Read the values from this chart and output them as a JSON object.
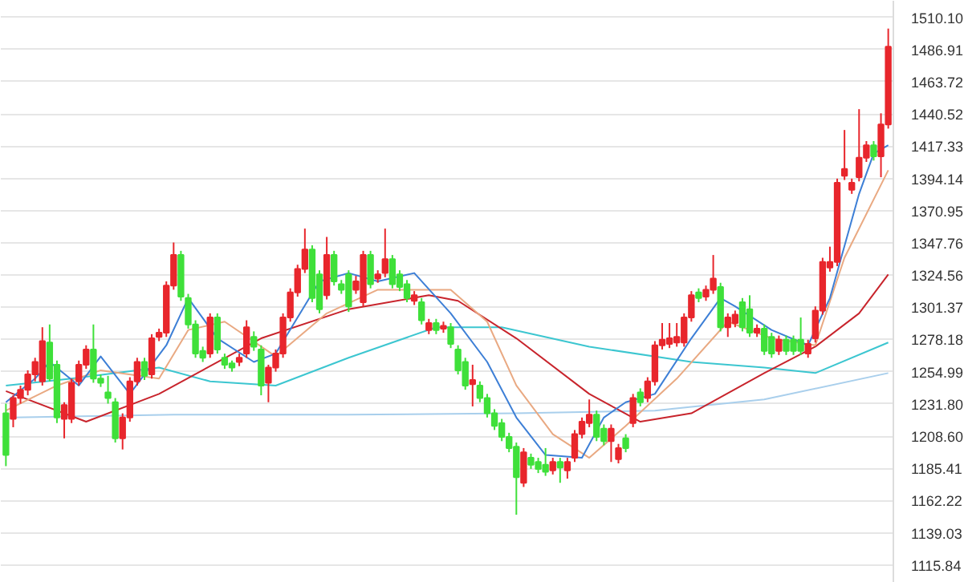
{
  "chart_data": {
    "type": "candlestick",
    "categories": [
      null,
      null,
      null,
      null,
      null,
      null,
      null,
      null,
      null,
      null,
      null,
      null,
      null,
      null,
      null,
      null,
      null,
      null,
      null,
      null,
      null,
      null,
      null,
      null,
      null,
      null,
      null,
      null,
      null,
      null,
      null,
      null,
      null,
      null,
      null,
      null,
      null,
      null,
      null,
      null,
      null,
      null,
      null,
      null,
      null,
      null,
      null,
      null,
      null,
      null,
      null,
      null,
      null,
      null,
      null,
      null,
      null,
      null,
      null,
      null,
      null,
      null,
      null,
      null,
      null,
      null,
      null,
      null,
      null,
      null,
      null,
      null,
      null,
      null,
      null,
      null,
      null,
      null,
      null,
      null,
      null,
      null,
      null,
      null,
      null,
      null,
      null,
      null,
      null,
      null,
      null,
      null,
      null,
      null,
      null,
      null,
      null,
      null,
      null,
      null,
      null,
      null,
      null,
      null,
      null,
      null,
      null,
      null,
      null,
      null,
      null,
      null,
      null,
      null,
      null,
      null,
      null,
      null,
      null,
      null,
      null,
      null
    ],
    "ohlc": [
      [
        1225,
        1232,
        1187,
        1195
      ],
      [
        1221,
        1238,
        1215,
        1236
      ],
      [
        1236,
        1245,
        1232,
        1242
      ],
      [
        1242,
        1256,
        1238,
        1253
      ],
      [
        1253,
        1265,
        1248,
        1262
      ],
      [
        1248,
        1287,
        1245,
        1277
      ],
      [
        1276,
        1289,
        1248,
        1250
      ],
      [
        1260,
        1263,
        1218,
        1222
      ],
      [
        1221,
        1233,
        1207,
        1231
      ],
      [
        1221,
        1250,
        1218,
        1247
      ],
      [
        1248,
        1263,
        1245,
        1260
      ],
      [
        1260,
        1274,
        1257,
        1271
      ],
      [
        1271,
        1289,
        1247,
        1250
      ],
      [
        1250,
        1253,
        1244,
        1247
      ],
      [
        1240,
        1252,
        1232,
        1236
      ],
      [
        1233,
        1236,
        1204,
        1207
      ],
      [
        1207,
        1225,
        1199,
        1222
      ],
      [
        1222,
        1251,
        1219,
        1248
      ],
      [
        1248,
        1265,
        1245,
        1262
      ],
      [
        1262,
        1265,
        1249,
        1252
      ],
      [
        1253,
        1282,
        1250,
        1279
      ],
      [
        1280,
        1286,
        1277,
        1283
      ],
      [
        1283,
        1320,
        1280,
        1317
      ],
      [
        1317,
        1348,
        1314,
        1339
      ],
      [
        1339,
        1342,
        1306,
        1309
      ],
      [
        1308,
        1311,
        1286,
        1289
      ],
      [
        1289,
        1292,
        1265,
        1268
      ],
      [
        1270,
        1273,
        1262,
        1265
      ],
      [
        1268,
        1297,
        1265,
        1294
      ],
      [
        1294,
        1297,
        1268,
        1271
      ],
      [
        1265,
        1268,
        1257,
        1260
      ],
      [
        1261,
        1263,
        1255,
        1258
      ],
      [
        1262,
        1268,
        1259,
        1265
      ],
      [
        1268,
        1292,
        1265,
        1287
      ],
      [
        1280,
        1284,
        1270,
        1273
      ],
      [
        1271,
        1274,
        1238,
        1245
      ],
      [
        1247,
        1260,
        1233,
        1258
      ],
      [
        1258,
        1271,
        1255,
        1268
      ],
      [
        1268,
        1297,
        1265,
        1294
      ],
      [
        1294,
        1315,
        1291,
        1312
      ],
      [
        1312,
        1332,
        1309,
        1329
      ],
      [
        1329,
        1358,
        1326,
        1343
      ],
      [
        1343,
        1346,
        1305,
        1308
      ],
      [
        1325,
        1328,
        1297,
        1300
      ],
      [
        1310,
        1352,
        1307,
        1339
      ],
      [
        1339,
        1342,
        1317,
        1320
      ],
      [
        1318,
        1321,
        1311,
        1314
      ],
      [
        1325,
        1328,
        1298,
        1302
      ],
      [
        1314,
        1324,
        1311,
        1320
      ],
      [
        1305,
        1342,
        1302,
        1339
      ],
      [
        1339,
        1342,
        1315,
        1318
      ],
      [
        1322,
        1328,
        1319,
        1325
      ],
      [
        1326,
        1358,
        1323,
        1336
      ],
      [
        1336,
        1339,
        1315,
        1318
      ],
      [
        1325,
        1328,
        1313,
        1316
      ],
      [
        1318,
        1321,
        1305,
        1308
      ],
      [
        1306,
        1313,
        1303,
        1310
      ],
      [
        1305,
        1308,
        1289,
        1292
      ],
      [
        1285,
        1293,
        1282,
        1290
      ],
      [
        1290,
        1293,
        1282,
        1285
      ],
      [
        1286,
        1291,
        1283,
        1288
      ],
      [
        1287,
        1290,
        1272,
        1275
      ],
      [
        1271,
        1274,
        1253,
        1256
      ],
      [
        1262,
        1265,
        1242,
        1245
      ],
      [
        1246,
        1260,
        1230,
        1249
      ],
      [
        1245,
        1248,
        1233,
        1236
      ],
      [
        1236,
        1239,
        1222,
        1225
      ],
      [
        1225,
        1228,
        1213,
        1216
      ],
      [
        1218,
        1221,
        1205,
        1208
      ],
      [
        1208,
        1211,
        1197,
        1200
      ],
      [
        1201,
        1204,
        1152,
        1179
      ],
      [
        1175,
        1200,
        1172,
        1197
      ],
      [
        1193,
        1196,
        1185,
        1188
      ],
      [
        1190,
        1193,
        1182,
        1185
      ],
      [
        1188,
        1200,
        1180,
        1183
      ],
      [
        1184,
        1193,
        1181,
        1190
      ],
      [
        1190,
        1193,
        1175,
        1186
      ],
      [
        1184,
        1193,
        1178,
        1190
      ],
      [
        1193,
        1213,
        1190,
        1210
      ],
      [
        1210,
        1222,
        1207,
        1219
      ],
      [
        1218,
        1235,
        1215,
        1224
      ],
      [
        1224,
        1227,
        1205,
        1208
      ],
      [
        1214,
        1217,
        1202,
        1205
      ],
      [
        1205,
        1217,
        1190,
        1214
      ],
      [
        1192,
        1203,
        1189,
        1200
      ],
      [
        1207,
        1210,
        1197,
        1200
      ],
      [
        1218,
        1239,
        1215,
        1236
      ],
      [
        1240,
        1243,
        1230,
        1233
      ],
      [
        1236,
        1251,
        1233,
        1248
      ],
      [
        1248,
        1277,
        1245,
        1274
      ],
      [
        1274,
        1290,
        1271,
        1278
      ],
      [
        1275,
        1290,
        1272,
        1279
      ],
      [
        1276,
        1290,
        1273,
        1280
      ],
      [
        1276,
        1297,
        1273,
        1294
      ],
      [
        1294,
        1313,
        1291,
        1310
      ],
      [
        1312,
        1315,
        1305,
        1308
      ],
      [
        1309,
        1317,
        1306,
        1314
      ],
      [
        1314,
        1339,
        1311,
        1322
      ],
      [
        1316,
        1319,
        1284,
        1287
      ],
      [
        1287,
        1297,
        1280,
        1294
      ],
      [
        1290,
        1299,
        1287,
        1296
      ],
      [
        1305,
        1308,
        1284,
        1287
      ],
      [
        1300,
        1310,
        1280,
        1283
      ],
      [
        1283,
        1289,
        1280,
        1286
      ],
      [
        1286,
        1289,
        1267,
        1270
      ],
      [
        1280,
        1283,
        1265,
        1268
      ],
      [
        1270,
        1281,
        1267,
        1278
      ],
      [
        1278,
        1281,
        1267,
        1270
      ],
      [
        1278,
        1281,
        1267,
        1270
      ],
      [
        1278,
        1294,
        1267,
        1270
      ],
      [
        1268,
        1278,
        1265,
        1275
      ],
      [
        1279,
        1302,
        1276,
        1299
      ],
      [
        1299,
        1337,
        1296,
        1334
      ],
      [
        1330,
        1345,
        1327,
        1334
      ],
      [
        1334,
        1394,
        1331,
        1391
      ],
      [
        1396,
        1429,
        1393,
        1401
      ],
      [
        1386,
        1394,
        1383,
        1391
      ],
      [
        1395,
        1444,
        1392,
        1409
      ],
      [
        1409,
        1421,
        1406,
        1418
      ],
      [
        1418,
        1421,
        1407,
        1410
      ],
      [
        1410,
        1441,
        1395,
        1433
      ],
      [
        1433,
        1502,
        1430,
        1489
      ]
    ],
    "series": [
      {
        "type": "line",
        "color": "#a9cfec",
        "values": [
          null,
          1222,
          null,
          null,
          null,
          null,
          null,
          null,
          null,
          null,
          null,
          null,
          null,
          null,
          null,
          null,
          null,
          null,
          null,
          null,
          null,
          null,
          null,
          1224,
          null,
          null,
          null,
          null,
          null,
          null,
          null,
          null,
          null,
          null,
          null,
          null,
          null,
          null,
          null,
          null,
          null,
          null,
          null,
          null,
          null,
          null,
          null,
          1224,
          null,
          null,
          null,
          null,
          null,
          null,
          null,
          null,
          null,
          null,
          null,
          null,
          null,
          null,
          null,
          null,
          null,
          null,
          null,
          null,
          null,
          null,
          1225,
          null,
          null,
          null,
          null,
          null,
          null,
          null,
          null,
          null,
          null,
          null,
          null,
          null,
          null,
          null,
          null,
          null,
          null,
          1227,
          null,
          null,
          null,
          null,
          null,
          null,
          null,
          null,
          null,
          null,
          null,
          null,
          null,
          null,
          1235,
          null,
          null,
          null,
          null,
          null,
          null,
          null,
          null,
          null,
          null,
          null,
          null,
          null,
          null,
          null,
          null,
          1254
        ]
      },
      {
        "type": "line",
        "color": "#3cc6d0",
        "values": [
          1245,
          null,
          null,
          null,
          null,
          null,
          null,
          null,
          null,
          1250,
          null,
          null,
          null,
          null,
          null,
          null,
          null,
          null,
          null,
          null,
          null,
          1258,
          null,
          null,
          null,
          null,
          null,
          null,
          1248,
          null,
          null,
          null,
          null,
          null,
          null,
          null,
          null,
          1245,
          null,
          null,
          null,
          null,
          null,
          null,
          null,
          null,
          null,
          1265,
          null,
          null,
          null,
          null,
          null,
          null,
          null,
          null,
          null,
          null,
          null,
          1287,
          null,
          null,
          null,
          null,
          null,
          null,
          null,
          null,
          1287,
          null,
          null,
          null,
          null,
          null,
          null,
          null,
          null,
          null,
          null,
          null,
          1273,
          null,
          null,
          null,
          null,
          null,
          null,
          null,
          null,
          null,
          null,
          null,
          null,
          null,
          1262,
          null,
          null,
          null,
          null,
          null,
          null,
          null,
          null,
          null,
          1258,
          null,
          null,
          null,
          null,
          null,
          null,
          1254,
          null,
          null,
          null,
          null,
          null,
          null,
          null,
          null,
          null,
          1276
        ]
      },
      {
        "type": "line",
        "color": "#c8242c",
        "values": [
          1241,
          null,
          null,
          null,
          null,
          null,
          null,
          null,
          null,
          null,
          null,
          1219,
          null,
          null,
          null,
          null,
          null,
          null,
          null,
          null,
          null,
          1239,
          null,
          null,
          null,
          null,
          null,
          null,
          null,
          null,
          null,
          null,
          null,
          null,
          null,
          1279,
          null,
          null,
          null,
          null,
          null,
          null,
          null,
          null,
          null,
          null,
          null,
          1300,
          null,
          null,
          null,
          null,
          null,
          null,
          null,
          null,
          null,
          null,
          1310,
          null,
          null,
          null,
          1306,
          null,
          null,
          null,
          null,
          null,
          null,
          null,
          1279,
          null,
          null,
          null,
          null,
          null,
          null,
          null,
          null,
          null,
          1239,
          null,
          null,
          null,
          null,
          null,
          null,
          1219,
          null,
          null,
          null,
          null,
          null,
          null,
          1225,
          null,
          null,
          null,
          null,
          null,
          null,
          null,
          null,
          null,
          1254,
          null,
          null,
          null,
          null,
          null,
          null,
          1273,
          null,
          null,
          null,
          null,
          null,
          1297,
          null,
          null,
          null,
          1325
        ]
      },
      {
        "type": "line",
        "color": "#e9a982",
        "values": [
          1227,
          null,
          null,
          null,
          null,
          null,
          null,
          1245,
          null,
          null,
          null,
          null,
          null,
          1256,
          null,
          null,
          null,
          null,
          null,
          null,
          null,
          1250,
          null,
          null,
          null,
          1285,
          null,
          null,
          null,
          null,
          1291,
          null,
          null,
          null,
          null,
          null,
          null,
          1266,
          null,
          null,
          null,
          null,
          null,
          null,
          1297,
          null,
          null,
          null,
          null,
          null,
          null,
          1314,
          null,
          null,
          null,
          null,
          null,
          null,
          null,
          null,
          null,
          1314,
          null,
          null,
          null,
          null,
          1291,
          null,
          null,
          null,
          1245,
          null,
          null,
          null,
          null,
          1210,
          null,
          null,
          null,
          null,
          1193,
          null,
          null,
          null,
          null,
          1216,
          null,
          null,
          null,
          null,
          null,
          null,
          1250,
          null,
          null,
          null,
          null,
          null,
          null,
          1291,
          null,
          null,
          null,
          null,
          null,
          1279,
          null,
          null,
          null,
          null,
          null,
          1274,
          null,
          null,
          null,
          1337,
          null,
          null,
          null,
          null,
          null,
          1400
        ]
      },
      {
        "type": "line",
        "color": "#3d7fd6",
        "values": [
          1233,
          null,
          null,
          null,
          1250,
          null,
          1262,
          null,
          null,
          null,
          1245,
          null,
          null,
          1266,
          null,
          null,
          null,
          1239,
          null,
          null,
          null,
          null,
          1274,
          null,
          null,
          1308,
          null,
          null,
          null,
          1279,
          null,
          null,
          null,
          null,
          1262,
          null,
          null,
          1268,
          null,
          null,
          null,
          null,
          null,
          1320,
          null,
          null,
          null,
          1326,
          null,
          null,
          null,
          1320,
          null,
          null,
          null,
          null,
          1326,
          null,
          null,
          null,
          null,
          1297,
          null,
          null,
          null,
          null,
          1262,
          null,
          null,
          null,
          1222,
          null,
          null,
          null,
          1195,
          null,
          null,
          null,
          null,
          1193,
          null,
          null,
          1222,
          null,
          null,
          1233,
          null,
          null,
          null,
          1239,
          null,
          null,
          null,
          null,
          1279,
          null,
          null,
          null,
          1308,
          null,
          1302,
          null,
          null,
          null,
          null,
          1285,
          null,
          null,
          null,
          null,
          1274,
          null,
          null,
          1308,
          null,
          null,
          null,
          1383,
          null,
          1412,
          null,
          1418
        ]
      }
    ],
    "ylim": [
      1103,
      1522
    ],
    "yticks": [
      {
        "value": 1510.1,
        "label": "1510.10"
      },
      {
        "value": 1486.91,
        "label": "1486.91"
      },
      {
        "value": 1463.72,
        "label": "1463.72"
      },
      {
        "value": 1440.52,
        "label": "1440.52"
      },
      {
        "value": 1417.33,
        "label": "1417.33"
      },
      {
        "value": 1394.14,
        "label": "1394.14"
      },
      {
        "value": 1370.95,
        "label": "1370.95"
      },
      {
        "value": 1347.76,
        "label": "1347.76"
      },
      {
        "value": 1324.56,
        "label": "1324.56"
      },
      {
        "value": 1301.37,
        "label": "1301.37"
      },
      {
        "value": 1278.18,
        "label": "1278.18"
      },
      {
        "value": 1254.99,
        "label": "1254.99"
      },
      {
        "value": 1231.8,
        "label": "1231.80"
      },
      {
        "value": 1208.6,
        "label": "1208.60"
      },
      {
        "value": 1185.41,
        "label": "1185.41"
      },
      {
        "value": 1162.22,
        "label": "1162.22"
      },
      {
        "value": 1139.03,
        "label": "1139.03"
      },
      {
        "value": 1115.84,
        "label": "1115.84"
      }
    ],
    "grid": "y",
    "tick_labels": "y"
  }
}
